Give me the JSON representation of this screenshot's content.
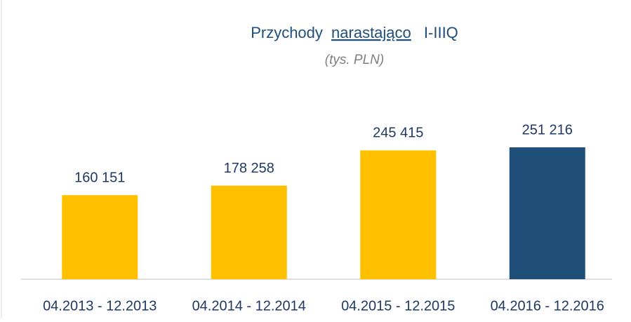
{
  "chart_data": {
    "type": "bar",
    "title": [
      "Przychody",
      "narastająco",
      "I-IIIQ"
    ],
    "subtitle": "(tys. PLN)",
    "categories": [
      "04.2013 - 12.2013",
      "04.2014 - 12.2014",
      "04.2015 - 12.2015",
      "04.2016 - 12.2016"
    ],
    "values": [
      160151,
      178258,
      245415,
      251216
    ],
    "value_labels": [
      "160 151",
      "178 258",
      "245 415",
      "251 216"
    ],
    "colors": [
      "#FFC000",
      "#FFC000",
      "#FFC000",
      "#1F4E79"
    ]
  }
}
